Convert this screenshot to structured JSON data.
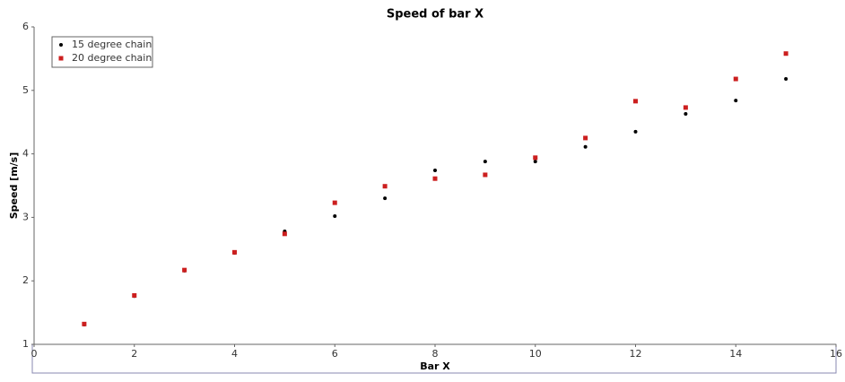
{
  "chart_data": {
    "type": "scatter",
    "title": "Speed of bar X",
    "x_label": "Bar X",
    "y_label": "Speed [m/s]",
    "x": [
      1,
      2,
      3,
      4,
      5,
      6,
      7,
      8,
      9,
      10,
      11,
      12,
      13,
      14,
      15
    ],
    "series": [
      {
        "name": "15 degree chain",
        "color": "#000000",
        "marker": "circle",
        "values": [
          1.31,
          1.76,
          2.16,
          2.44,
          2.78,
          3.02,
          3.3,
          3.74,
          3.88,
          3.88,
          4.11,
          4.35,
          4.63,
          4.84,
          5.18
        ]
      },
      {
        "name": "20 degree chain",
        "color": "#cc1f1f",
        "marker": "square",
        "values": [
          1.32,
          1.77,
          2.17,
          2.45,
          2.74,
          3.23,
          3.49,
          3.61,
          3.67,
          3.94,
          4.25,
          4.83,
          4.73,
          5.18,
          5.58
        ]
      }
    ],
    "xlim": [
      0,
      16
    ],
    "xticks": [
      0,
      2,
      4,
      6,
      8,
      10,
      12,
      14,
      16
    ],
    "ylim": [
      1,
      6
    ],
    "yticks": [
      1,
      2,
      3,
      4,
      5,
      6
    ],
    "legend": "upper left",
    "grid": false
  }
}
